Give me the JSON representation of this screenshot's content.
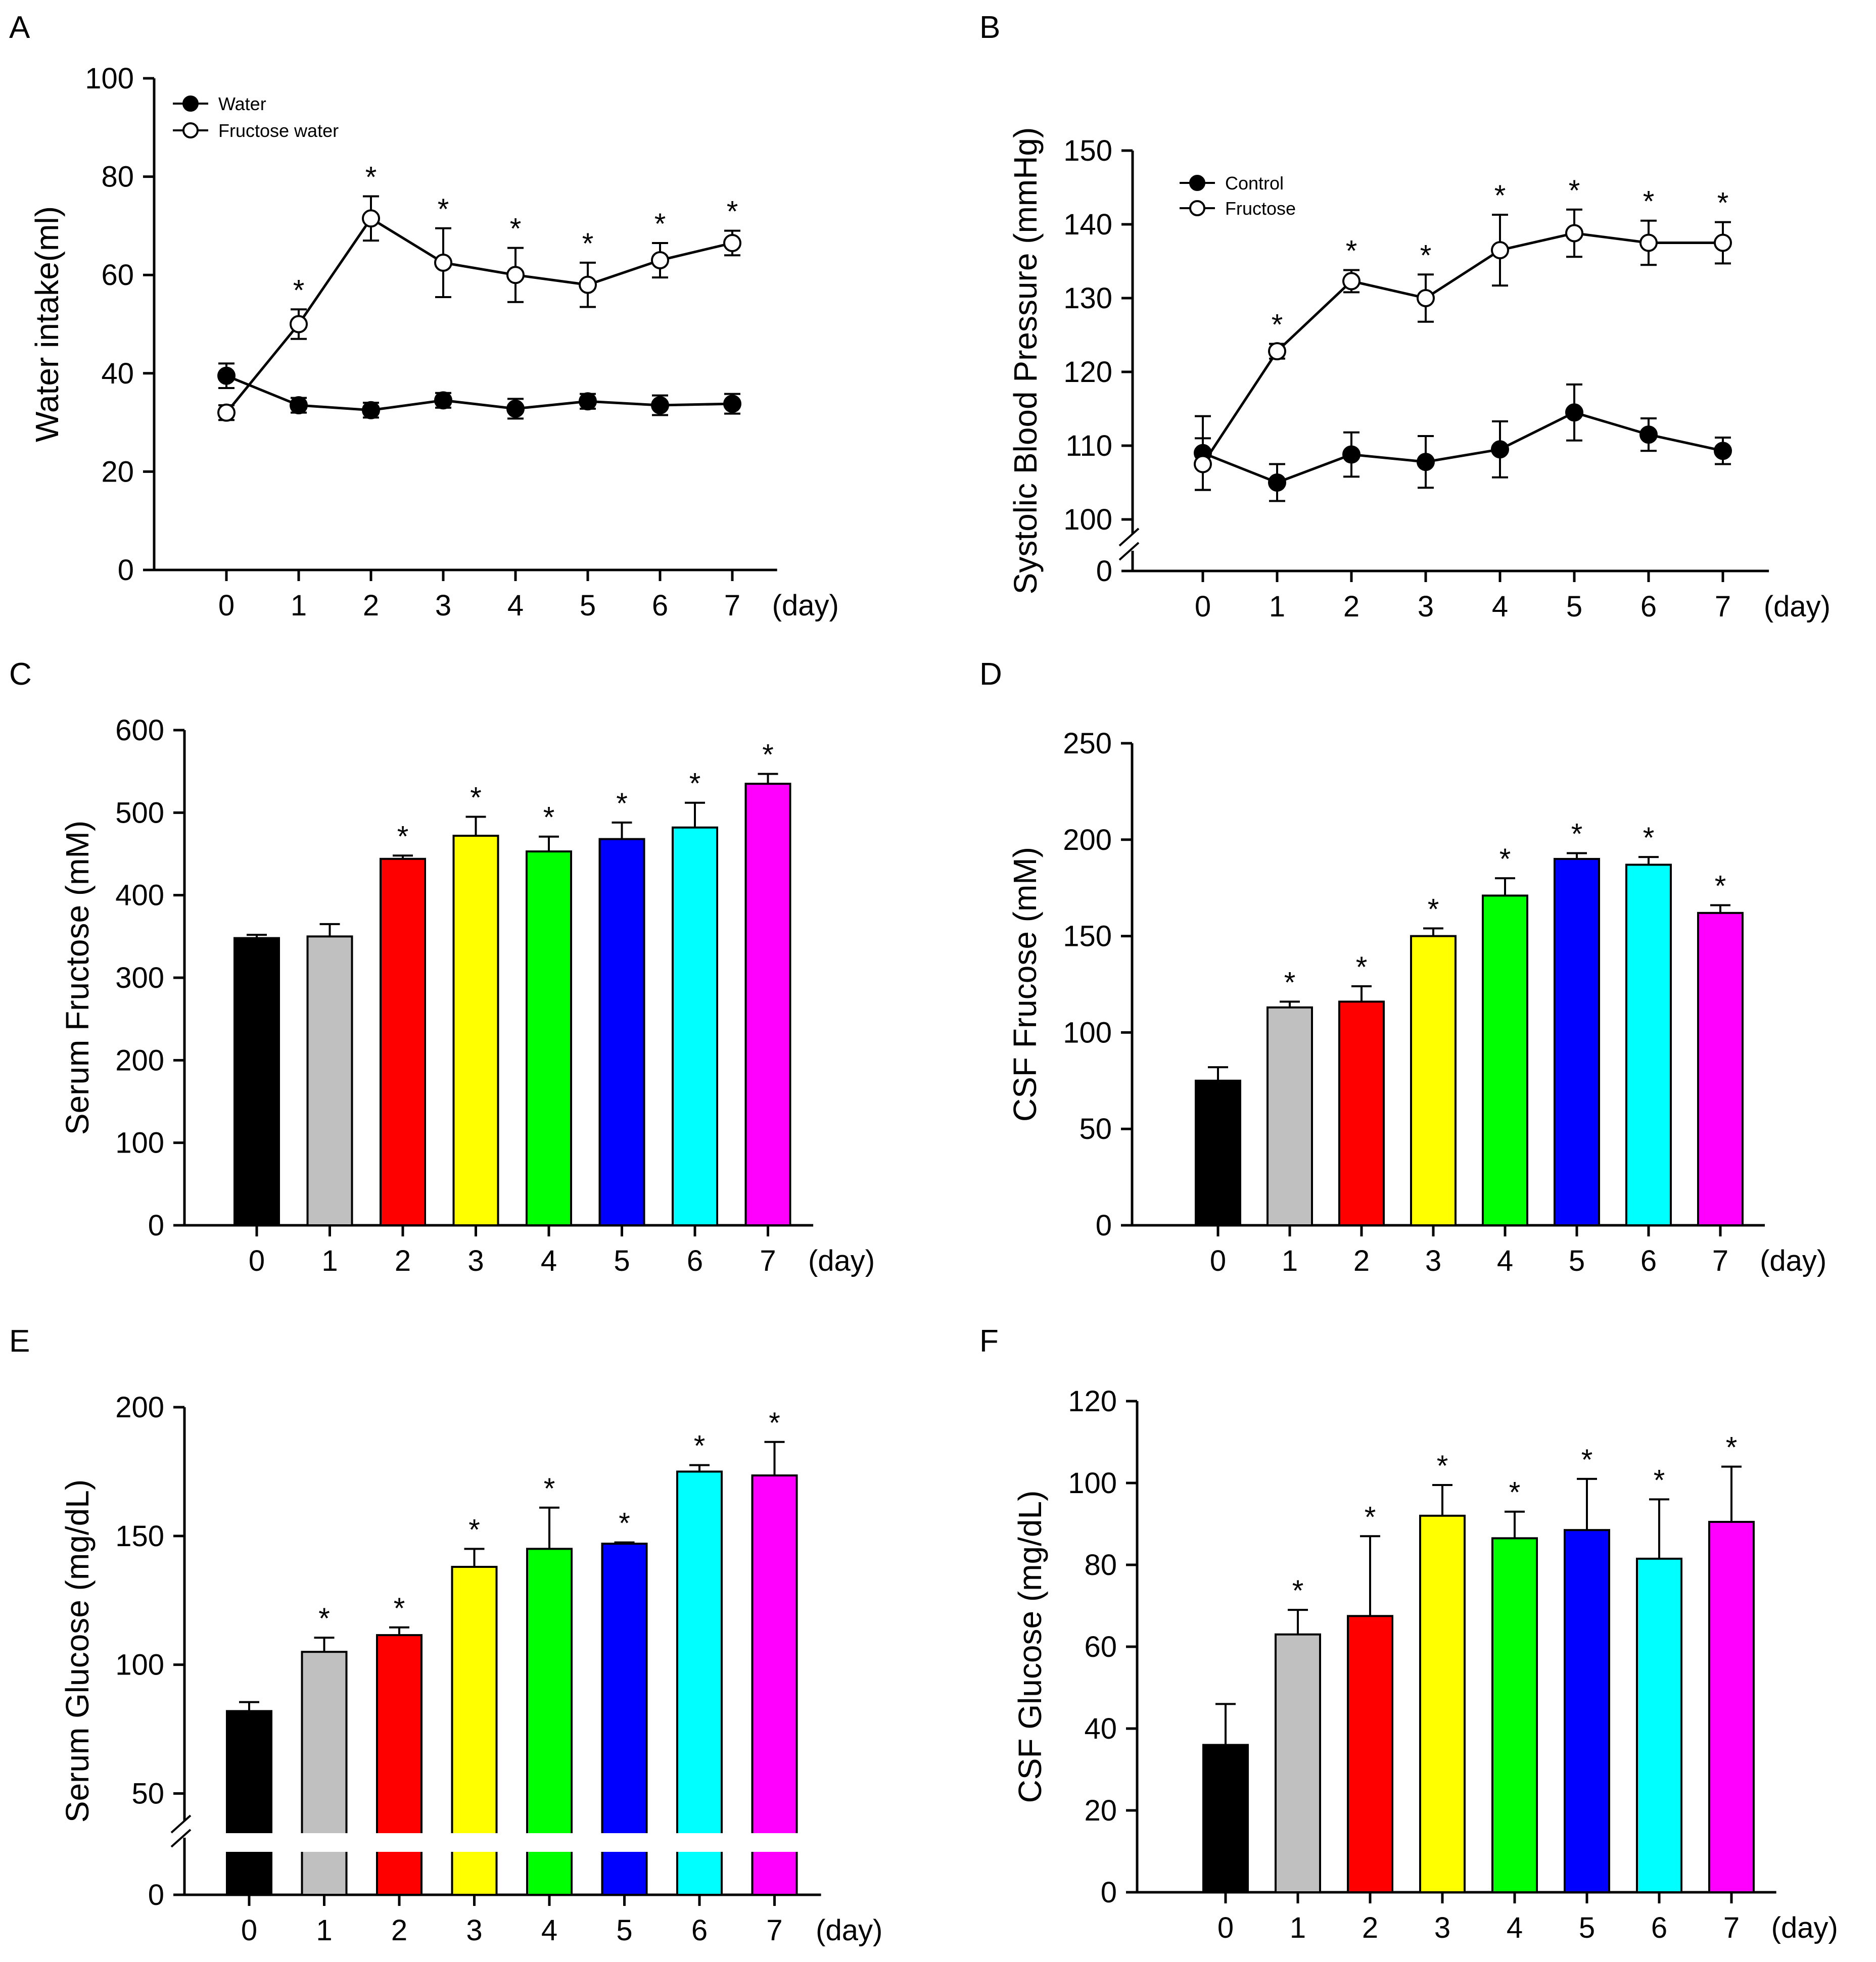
{
  "colors": {
    "day0": "#000000",
    "day1": "#c0c0c0",
    "day2": "#ff0000",
    "day3": "#ffff00",
    "day4": "#00ff00",
    "day5": "#0000ff",
    "day6": "#00ffff",
    "day7": "#ff00ff"
  },
  "chart_data": [
    {
      "panel": "A",
      "type": "line",
      "categories": [
        "0",
        "1",
        "2",
        "3",
        "4",
        "5",
        "6",
        "7"
      ],
      "unit_label": "(day)",
      "ylabel": "Water intake(ml)",
      "ylim": [
        0,
        100
      ],
      "yticks": [
        "0",
        "20",
        "40",
        "60",
        "80",
        "100"
      ],
      "series": [
        {
          "name": "Water",
          "marker": "filled",
          "values": [
            39.5,
            33.5,
            32.5,
            34.5,
            32.8,
            34.3,
            33.5,
            33.8
          ],
          "err": [
            2.5,
            1.5,
            1.5,
            1.5,
            2.0,
            1.5,
            2.0,
            2.0
          ]
        },
        {
          "name": "Fructose water",
          "marker": "open",
          "values": [
            32.0,
            50.0,
            71.5,
            62.5,
            60.0,
            58.0,
            63.0,
            66.5
          ],
          "err": [
            1.5,
            3.0,
            4.5,
            7.0,
            5.5,
            4.5,
            3.5,
            2.5
          ]
        }
      ],
      "significance": [
        "",
        "*",
        "*",
        "*",
        "*",
        "*",
        "*",
        "*"
      ]
    },
    {
      "panel": "B",
      "type": "line",
      "categories": [
        "0",
        "1",
        "2",
        "3",
        "4",
        "5",
        "6",
        "7"
      ],
      "unit_label": "(day)",
      "ylabel": "Systolic Blood Pressure (mmHg)",
      "ylim": [
        100,
        150
      ],
      "axis_break": true,
      "yticks": [
        "100",
        "110",
        "120",
        "130",
        "140",
        "150"
      ],
      "zero_label": "0",
      "series": [
        {
          "name": "Control",
          "marker": "filled",
          "values": [
            109.0,
            105.0,
            108.8,
            107.8,
            109.5,
            114.5,
            111.5,
            109.3
          ],
          "err": [
            5.0,
            2.5,
            3.0,
            3.5,
            3.8,
            3.8,
            2.2,
            1.8
          ]
        },
        {
          "name": "Fructose",
          "marker": "open",
          "values": [
            107.5,
            122.8,
            132.3,
            130.0,
            136.5,
            138.8,
            137.5,
            137.5
          ],
          "err": [
            3.5,
            1.0,
            1.5,
            3.2,
            4.8,
            3.2,
            3.0,
            2.8
          ]
        }
      ],
      "significance": [
        "",
        "*",
        "*",
        "*",
        "*",
        "*",
        "*",
        "*"
      ]
    },
    {
      "panel": "C",
      "type": "bar",
      "categories": [
        "0",
        "1",
        "2",
        "3",
        "4",
        "5",
        "6",
        "7"
      ],
      "unit_label": "(day)",
      "ylabel": "Serum Fructose (mM)",
      "ylim": [
        0,
        600
      ],
      "yticks": [
        "0",
        "100",
        "200",
        "300",
        "400",
        "500",
        "600"
      ],
      "values": [
        348,
        350,
        444,
        472,
        453,
        468,
        482,
        535
      ],
      "err": [
        4,
        15,
        4,
        23,
        18,
        20,
        30,
        12
      ],
      "significance": [
        "",
        "",
        "*",
        "*",
        "*",
        "*",
        "*",
        "*"
      ]
    },
    {
      "panel": "D",
      "type": "bar",
      "categories": [
        "0",
        "1",
        "2",
        "3",
        "4",
        "5",
        "6",
        "7"
      ],
      "unit_label": "(day)",
      "ylabel": "CSF Frucose (mM)",
      "ylim": [
        0,
        250
      ],
      "yticks": [
        "0",
        "50",
        "100",
        "150",
        "200",
        "250"
      ],
      "values": [
        75,
        113,
        116,
        150,
        171,
        190,
        187,
        162
      ],
      "err": [
        7,
        3,
        8,
        4,
        9,
        3,
        4,
        4
      ],
      "significance": [
        "",
        "*",
        "*",
        "*",
        "*",
        "*",
        "*",
        "*"
      ]
    },
    {
      "panel": "E",
      "type": "bar",
      "categories": [
        "0",
        "1",
        "2",
        "3",
        "4",
        "5",
        "6",
        "7"
      ],
      "unit_label": "(day)",
      "ylabel": "Serum Glucose (mg/dL)",
      "ylim": [
        45,
        200
      ],
      "axis_break": true,
      "yticks": [
        "50",
        "100",
        "150",
        "200"
      ],
      "zero_label": "0",
      "values": [
        82,
        105,
        111.5,
        138,
        145,
        147,
        175,
        173.5
      ],
      "err": [
        3.5,
        5.5,
        3,
        7,
        16,
        0.5,
        2.5,
        13
      ],
      "significance": [
        "",
        "*",
        "*",
        "*",
        "*",
        "*",
        "*",
        "*"
      ]
    },
    {
      "panel": "F",
      "type": "bar",
      "categories": [
        "0",
        "1",
        "2",
        "3",
        "4",
        "5",
        "6",
        "7"
      ],
      "unit_label": "(day)",
      "ylabel": "CSF Glucose (mg/dL)",
      "ylim": [
        0,
        120
      ],
      "yticks": [
        "0",
        "20",
        "40",
        "60",
        "80",
        "100",
        "120"
      ],
      "values": [
        36,
        63,
        67.5,
        92,
        86.5,
        88.5,
        81.5,
        90.5
      ],
      "err": [
        10,
        6,
        19.5,
        7.5,
        6.5,
        12.5,
        14.5,
        13.5
      ],
      "significance": [
        "",
        "*",
        "*",
        "*",
        "*",
        "*",
        "*",
        "*"
      ]
    }
  ]
}
